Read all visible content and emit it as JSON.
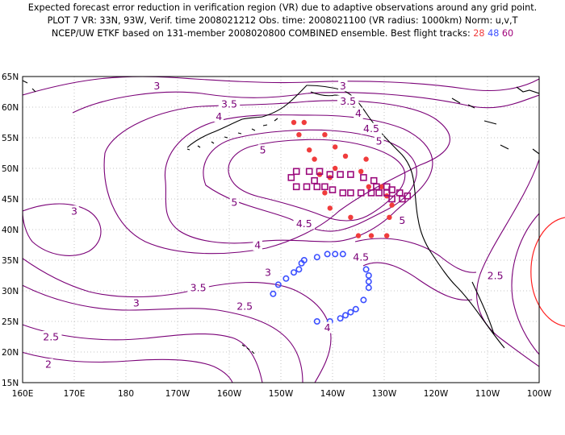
{
  "title": {
    "line1": "Expected forecast error reduction in verification region (VR) due to adaptive observations around any grid point.",
    "line2": "PLOT 7 VR: 33N, 93W, Verif. time 2008021212 Obs. time: 2008021100 (VR radius: 1000km) Norm: u,v,T",
    "line3_prefix": "NCEP/UW ETKF based on 131-member 2008020800 COMBINED ensemble.  Best flight tracks: ",
    "track_red": "28",
    "track_blue": "48",
    "track_purple": "60"
  },
  "map": {
    "lat_labels": [
      "65N",
      "60N",
      "55N",
      "50N",
      "45N",
      "40N",
      "35N",
      "30N",
      "25N",
      "20N",
      "15N"
    ],
    "lon_labels": [
      "160E",
      "170E",
      "180",
      "170W",
      "160W",
      "150W",
      "140W",
      "130W",
      "120W",
      "110W",
      "100W"
    ],
    "contour_labels": [
      {
        "text": "3",
        "lon": -174.0,
        "lat": 63.5
      },
      {
        "text": "3",
        "lon": -138.0,
        "lat": 63.5
      },
      {
        "text": "3.5",
        "lon": -160.0,
        "lat": 60.5
      },
      {
        "text": "3.5",
        "lon": -137.0,
        "lat": 61.0
      },
      {
        "text": "4",
        "lon": -162.0,
        "lat": 58.5
      },
      {
        "text": "4",
        "lon": -135.0,
        "lat": 59.0
      },
      {
        "text": "4.5",
        "lon": -132.5,
        "lat": 56.5
      },
      {
        "text": "5",
        "lon": -153.5,
        "lat": 53.0
      },
      {
        "text": "5",
        "lon": -131.0,
        "lat": 54.5
      },
      {
        "text": "5",
        "lon": -159.0,
        "lat": 44.5
      },
      {
        "text": "5",
        "lon": -126.5,
        "lat": 41.5
      },
      {
        "text": "4.5",
        "lon": -145.5,
        "lat": 41.0
      },
      {
        "text": "4.5",
        "lon": -134.5,
        "lat": 35.5
      },
      {
        "text": "4",
        "lon": -154.5,
        "lat": 37.5
      },
      {
        "text": "3",
        "lon": -190.0,
        "lat": 43.0
      },
      {
        "text": "3",
        "lon": -152.5,
        "lat": 33.0
      },
      {
        "text": "3.5",
        "lon": -166.0,
        "lat": 30.5
      },
      {
        "text": "3",
        "lon": -178.0,
        "lat": 28.0
      },
      {
        "text": "2.5",
        "lon": -157.0,
        "lat": 27.5
      },
      {
        "text": "2.5",
        "lon": -108.5,
        "lat": 32.5
      },
      {
        "text": "2.5",
        "lon": -194.5,
        "lat": 22.5
      },
      {
        "text": "2",
        "lon": -195.0,
        "lat": 18.0
      },
      {
        "text": "4",
        "lon": -141.0,
        "lat": 24.0
      }
    ],
    "red_track": [
      [
        -147.5,
        57.5
      ],
      [
        -145.5,
        57.5
      ],
      [
        -141.5,
        55.5
      ],
      [
        -146.5,
        55.5
      ],
      [
        -144.5,
        53.0
      ],
      [
        -139.5,
        53.5
      ],
      [
        -137.5,
        52.0
      ],
      [
        -143.5,
        51.5
      ],
      [
        -133.5,
        51.5
      ],
      [
        -142.5,
        49.0
      ],
      [
        -139.5,
        50.0
      ],
      [
        -134.5,
        49.5
      ],
      [
        -133.0,
        47.0
      ],
      [
        -140.5,
        48.5
      ],
      [
        -141.5,
        46.0
      ],
      [
        -130.5,
        47.0
      ],
      [
        -129.5,
        45.5
      ],
      [
        -128.5,
        44.0
      ],
      [
        -140.5,
        43.5
      ],
      [
        -136.5,
        42.0
      ],
      [
        -129.0,
        42.0
      ],
      [
        -135.0,
        39.0
      ],
      [
        -132.5,
        39.0
      ],
      [
        -129.5,
        39.0
      ]
    ],
    "purple_track": [
      [
        -148.0,
        48.5
      ],
      [
        -147.0,
        49.5
      ],
      [
        -144.5,
        49.5
      ],
      [
        -143.5,
        48.0
      ],
      [
        -142.5,
        49.5
      ],
      [
        -140.5,
        49.0
      ],
      [
        -138.5,
        49.0
      ],
      [
        -136.5,
        49.0
      ],
      [
        -134.0,
        48.5
      ],
      [
        -132.0,
        48.0
      ],
      [
        -131.5,
        47.0
      ],
      [
        -129.5,
        47.0
      ],
      [
        -128.5,
        46.5
      ],
      [
        -127.0,
        46.0
      ],
      [
        -125.5,
        45.5
      ],
      [
        -126.5,
        45.0
      ],
      [
        -128.5,
        45.0
      ],
      [
        -129.5,
        46.0
      ],
      [
        -131.0,
        46.0
      ],
      [
        -132.5,
        46.0
      ],
      [
        -134.5,
        46.0
      ],
      [
        -136.5,
        46.0
      ],
      [
        -138.0,
        46.0
      ],
      [
        -140.0,
        46.5
      ],
      [
        -141.5,
        47.0
      ],
      [
        -143.0,
        47.0
      ],
      [
        -145.0,
        47.0
      ],
      [
        -147.0,
        47.0
      ]
    ],
    "blue_track": [
      [
        -151.5,
        29.5
      ],
      [
        -150.5,
        31.0
      ],
      [
        -149.0,
        32.0
      ],
      [
        -147.5,
        33.0
      ],
      [
        -146.5,
        33.5
      ],
      [
        -146.0,
        34.5
      ],
      [
        -145.5,
        35.0
      ],
      [
        -143.0,
        35.5
      ],
      [
        -141.0,
        36.0
      ],
      [
        -139.5,
        36.0
      ],
      [
        -138.0,
        36.0
      ],
      [
        -133.5,
        33.5
      ],
      [
        -133.0,
        32.5
      ],
      [
        -133.0,
        31.5
      ],
      [
        -133.0,
        30.5
      ],
      [
        -134.0,
        28.5
      ],
      [
        -135.5,
        27.0
      ],
      [
        -136.5,
        26.5
      ],
      [
        -137.5,
        26.0
      ],
      [
        -138.5,
        25.5
      ],
      [
        -140.5,
        25.0
      ],
      [
        -143.0,
        25.0
      ]
    ],
    "colors": {
      "contour": "#7a0077",
      "red": "#f03c3c",
      "blue": "#3c50ff",
      "purple": "#9b0a7c",
      "coast": "#000000",
      "grid": "#b4b4b4",
      "vr_circle": "#ff2020"
    }
  }
}
